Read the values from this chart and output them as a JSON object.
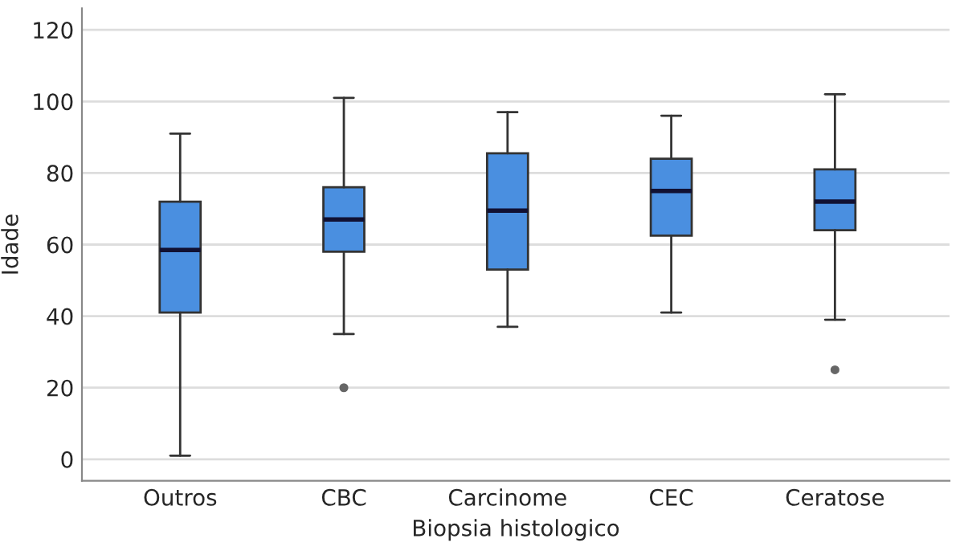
{
  "chart_data": {
    "type": "box",
    "xlabel": "Biopsia histologico",
    "ylabel": "Idade",
    "categories": [
      "Outros",
      "CBC",
      "Carcinome",
      "CEC",
      "Ceratose"
    ],
    "color": "#4a8fe0",
    "ylim": [
      -6,
      126
    ],
    "yticks": [
      0,
      20,
      40,
      60,
      80,
      100,
      120
    ],
    "grid": "y",
    "boxes": [
      {
        "low": 1,
        "q1": 41,
        "median": 58.5,
        "q3": 72,
        "high": 91
      },
      {
        "low": 35,
        "q1": 58,
        "median": 67,
        "q3": 76,
        "high": 101,
        "outliers": [
          20
        ]
      },
      {
        "low": 37,
        "q1": 53,
        "median": 69.5,
        "q3": 85.5,
        "high": 97
      },
      {
        "low": 41,
        "q1": 62.5,
        "median": 75,
        "q3": 84,
        "high": 96
      },
      {
        "low": 39,
        "q1": 64,
        "median": 72,
        "q3": 81,
        "high": 102,
        "outliers": [
          25
        ]
      }
    ]
  }
}
